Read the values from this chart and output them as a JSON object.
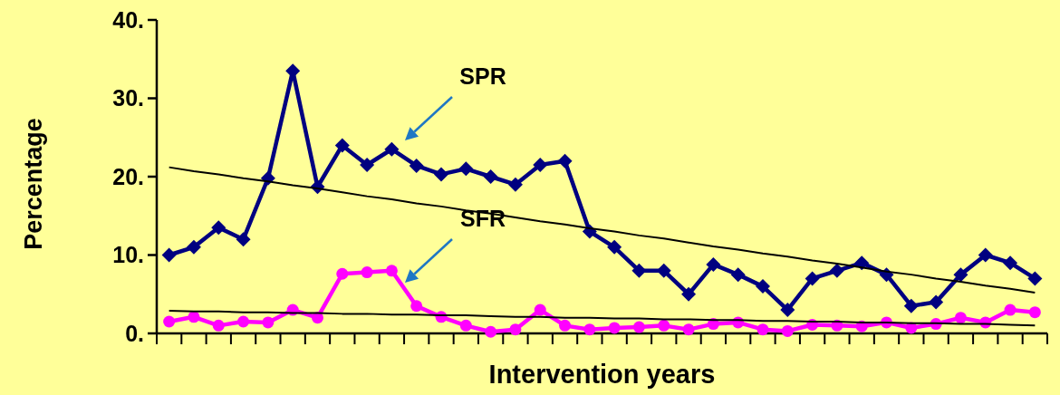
{
  "chart_data": {
    "type": "line",
    "xlabel": "Intervention years",
    "ylabel": "Percentage",
    "categories": [
      null,
      null,
      null,
      null,
      null,
      null,
      null,
      null,
      null,
      null,
      null,
      null,
      null,
      null,
      null,
      null,
      null,
      null,
      null,
      null,
      null,
      null,
      null,
      null,
      null,
      null,
      null,
      null,
      null,
      null,
      null,
      null,
      null,
      null,
      null,
      null
    ],
    "ylim": [
      0,
      40
    ],
    "yticks": [
      {
        "value": 0,
        "label": "0."
      },
      {
        "value": 10,
        "label": "10."
      },
      {
        "value": 20,
        "label": "20."
      },
      {
        "value": 30,
        "label": "30."
      },
      {
        "value": 40,
        "label": "40."
      }
    ],
    "grid": false,
    "series": [
      {
        "color": "#000080",
        "marker": "diamond",
        "values": [
          10,
          11,
          13.5,
          12,
          19.8,
          33.5,
          18.7,
          24,
          21.5,
          23.5,
          21.4,
          20.3,
          21,
          20,
          19,
          21.5,
          22,
          13,
          11,
          8,
          8,
          5,
          8.8,
          7.5,
          6,
          3,
          7,
          8,
          9,
          7.5,
          3.5,
          4,
          7.5,
          10,
          9,
          7
        ]
      },
      {
        "color": "#ff00ff",
        "marker": "circle",
        "values": [
          1.5,
          2.1,
          1.0,
          1.5,
          1.4,
          3.0,
          2.0,
          7.6,
          7.8,
          8.0,
          3.5,
          2.1,
          1.0,
          0.2,
          0.5,
          3.0,
          1.0,
          0.5,
          0.7,
          0.8,
          1.0,
          0.5,
          1.2,
          1.4,
          0.5,
          0.3,
          1.1,
          1.0,
          0.9,
          1.4,
          0.7,
          1.2,
          2.0,
          1.4,
          3.0,
          2.7
        ]
      },
      {
        "color": "#000000",
        "marker": "none",
        "values": [
          21.2,
          20.7,
          20.3,
          19.8,
          19.4,
          18.9,
          18.5,
          18.0,
          17.5,
          17.1,
          16.6,
          16.2,
          15.7,
          15.3,
          14.8,
          14.3,
          13.9,
          13.4,
          13.0,
          12.5,
          12.1,
          11.6,
          11.1,
          10.7,
          10.2,
          9.8,
          9.3,
          8.9,
          8.4,
          7.9,
          7.5,
          7.0,
          6.6,
          6.1,
          5.7,
          5.2
        ]
      },
      {
        "color": "#000000",
        "marker": "none",
        "values": [
          2.9,
          2.8,
          2.8,
          2.7,
          2.7,
          2.6,
          2.6,
          2.5,
          2.5,
          2.4,
          2.4,
          2.3,
          2.3,
          2.2,
          2.1,
          2.1,
          2.0,
          2.0,
          1.9,
          1.9,
          1.8,
          1.8,
          1.7,
          1.7,
          1.6,
          1.6,
          1.5,
          1.5,
          1.4,
          1.4,
          1.3,
          1.3,
          1.2,
          1.2,
          1.1,
          1.0
        ]
      }
    ],
    "annotations": [
      "SPR",
      "SFR"
    ]
  }
}
